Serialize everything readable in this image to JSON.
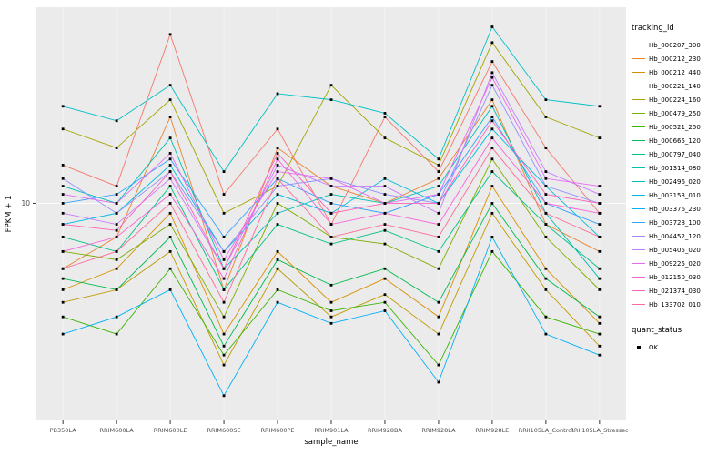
{
  "y_axis": {
    "label": "FPKM + 1",
    "ticks": [
      "10"
    ]
  },
  "x_axis": {
    "label": "sample_name"
  },
  "legend": {
    "tracking_title": "tracking_id",
    "quant_title": "quant_status",
    "quant_items": [
      {
        "label": "OK"
      }
    ]
  },
  "chart_data": {
    "type": "line",
    "title": "",
    "xlabel": "sample_name",
    "ylabel": "FPKM + 1",
    "y_scale": "log10",
    "ylim": [
      1,
      80
    ],
    "y_ticks": [
      10
    ],
    "grid": true,
    "legend_position": "right",
    "panel_bg": "#EBEBEB",
    "point_marker": "black-square",
    "categories": [
      "PB350LA",
      "RRIM600LA",
      "RRIM600LE",
      "RRIM600SE",
      "RRIM600PE",
      "RRIM901LA",
      "RRIM928BA",
      "RRIM928LA",
      "RRIM928LE",
      "RRII105LA_Control",
      "RRII105LA_Stressed"
    ],
    "series": [
      {
        "name": "Hb_000207_300",
        "color": "#F8766D",
        "values": [
          15,
          12,
          60,
          11,
          22,
          8,
          25,
          14,
          45,
          18,
          9
        ]
      },
      {
        "name": "Hb_000212_230",
        "color": "#EA8331",
        "values": [
          5,
          7,
          25,
          4,
          18,
          12,
          10,
          13,
          30,
          8,
          6
        ]
      },
      {
        "name": "Hb_000212_440",
        "color": "#D89000",
        "values": [
          4,
          5,
          9,
          2.5,
          6,
          3.5,
          4.5,
          3,
          12,
          5,
          2.8
        ]
      },
      {
        "name": "Hb_000221_140",
        "color": "#C09B00",
        "values": [
          3.5,
          4,
          6,
          1.8,
          5,
          3,
          3.8,
          2.5,
          9,
          4,
          2.2
        ]
      },
      {
        "name": "Hb_000224_160",
        "color": "#A3A500",
        "values": [
          22,
          18,
          30,
          9,
          12,
          35,
          20,
          15,
          55,
          25,
          20
        ]
      },
      {
        "name": "Hb_000479_250",
        "color": "#7CAE00",
        "values": [
          6,
          5.5,
          8,
          3,
          10,
          7,
          6.5,
          5,
          16,
          7,
          4
        ]
      },
      {
        "name": "Hb_000521_250",
        "color": "#39B600",
        "values": [
          3,
          2.5,
          5,
          2,
          4,
          3.2,
          3.5,
          1.8,
          6,
          3,
          2.5
        ]
      },
      {
        "name": "Hb_000665_120",
        "color": "#00BB4E",
        "values": [
          4.5,
          4,
          7,
          2.2,
          5.5,
          4.2,
          5,
          3.5,
          10,
          4.5,
          3
        ]
      },
      {
        "name": "Hb_000797_040",
        "color": "#00C087",
        "values": [
          7,
          6,
          12,
          4,
          8,
          6.5,
          7.5,
          6,
          14,
          8,
          5
        ]
      },
      {
        "name": "Hb_001314_080",
        "color": "#00C0B2",
        "values": [
          12,
          10,
          20,
          5,
          9,
          11,
          10,
          12,
          28,
          9,
          4.5
        ]
      },
      {
        "name": "Hb_002496_020",
        "color": "#00BFC4",
        "values": [
          28,
          24,
          35,
          14,
          32,
          30,
          26,
          16,
          65,
          30,
          28
        ]
      },
      {
        "name": "Hb_003153_010",
        "color": "#00BAE0",
        "values": [
          8,
          9,
          15,
          6,
          11,
          9,
          13,
          10,
          22,
          12,
          7
        ]
      },
      {
        "name": "Hb_003376_230",
        "color": "#00B0F6",
        "values": [
          2.5,
          3,
          4,
          1.3,
          3.5,
          2.8,
          3.2,
          1.5,
          7,
          2.5,
          2
        ]
      },
      {
        "name": "Hb_003728_100",
        "color": "#35A2FF",
        "values": [
          10,
          11,
          16,
          7,
          13,
          10,
          9,
          11,
          25,
          10,
          8
        ]
      },
      {
        "name": "Hb_004452_120",
        "color": "#9590FF",
        "values": [
          13,
          9,
          14,
          6,
          12,
          13,
          11,
          10,
          35,
          12,
          10
        ]
      },
      {
        "name": "Hb_005405_020",
        "color": "#C77CFF",
        "values": [
          9,
          8,
          13,
          5,
          15,
          12,
          12,
          9,
          40,
          14,
          11
        ]
      },
      {
        "name": "Hb_009225_020",
        "color": "#E76BF3",
        "values": [
          11,
          10,
          17,
          5.5,
          14,
          13,
          10,
          11,
          38,
          13,
          12
        ]
      },
      {
        "name": "Hb_012150_030",
        "color": "#FA62DB",
        "values": [
          6,
          7,
          11,
          4.5,
          16,
          8,
          9,
          8,
          20,
          10,
          9
        ]
      },
      {
        "name": "Hb_021374_030",
        "color": "#FF62BC",
        "values": [
          8,
          7.5,
          14,
          5,
          17,
          9,
          10,
          10,
          24,
          11,
          10
        ]
      },
      {
        "name": "Hb_133702_010",
        "color": "#FF6A98",
        "values": [
          5,
          6,
          10,
          3.5,
          13,
          7,
          8,
          7,
          18,
          9,
          7
        ]
      }
    ]
  }
}
